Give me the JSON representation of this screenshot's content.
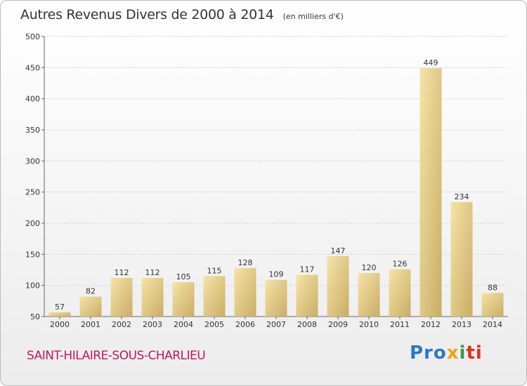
{
  "header": {
    "title": "Autres Revenus Divers de 2000 à 2014",
    "unit": "(en milliers d'€)"
  },
  "footer": {
    "commune": "SAINT-HILAIRE-SOUS-CHARLIEU",
    "logo": [
      "Pro",
      "x",
      "i",
      "ti"
    ]
  },
  "colors": {
    "bar_light": "#f6e3a6",
    "bar_dark": "#c9ad66",
    "commune_text": "#c2185b"
  },
  "chart_data": {
    "type": "bar",
    "title": "Autres Revenus Divers de 2000 à 2014",
    "categories": [
      "2000",
      "2001",
      "2002",
      "2003",
      "2004",
      "2005",
      "2006",
      "2007",
      "2008",
      "2009",
      "2010",
      "2011",
      "2012",
      "2013",
      "2014"
    ],
    "values": [
      57,
      82,
      112,
      112,
      105,
      115,
      128,
      109,
      117,
      147,
      120,
      126,
      449,
      234,
      88
    ],
    "ylim": [
      50,
      500
    ],
    "yticks": [
      50,
      100,
      150,
      200,
      250,
      300,
      350,
      400,
      450,
      500
    ],
    "grid": true,
    "data_labels": true
  }
}
